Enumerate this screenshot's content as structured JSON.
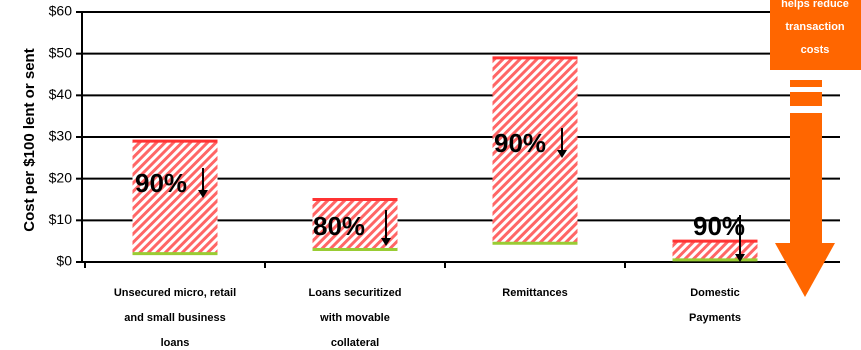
{
  "chart_data": {
    "type": "floating_bar",
    "y_axis_label": "Cost per $100 lent or sent",
    "categories": [
      [
        "Unsecured micro, retail",
        "and small business",
        "loans"
      ],
      [
        "Loans securitized",
        "with movable",
        "collateral"
      ],
      [
        "Remittances"
      ],
      [
        "Domestic",
        "Payments"
      ]
    ],
    "high": [
      29,
      15,
      49,
      5
    ],
    "low": [
      2,
      3,
      4.5,
      0.5
    ],
    "percent_labels": [
      "90%",
      "80%",
      "90%",
      "90%"
    ],
    "color": "#ff3333",
    "low_color": "#99cc33",
    "ylim": [
      0,
      60
    ],
    "yticks": [
      {
        "value": 0,
        "label": "$0"
      },
      {
        "value": 10,
        "label": "$10"
      },
      {
        "value": 20,
        "label": "$20"
      },
      {
        "value": 30,
        "label": "$30"
      },
      {
        "value": 40,
        "label": "$40"
      },
      {
        "value": 50,
        "label": "$50"
      },
      {
        "value": 60,
        "label": "$60"
      }
    ],
    "grid": true,
    "annotation": [
      "helps reduce",
      "transaction",
      "costs"
    ],
    "annotation_color": "#ff6600"
  }
}
